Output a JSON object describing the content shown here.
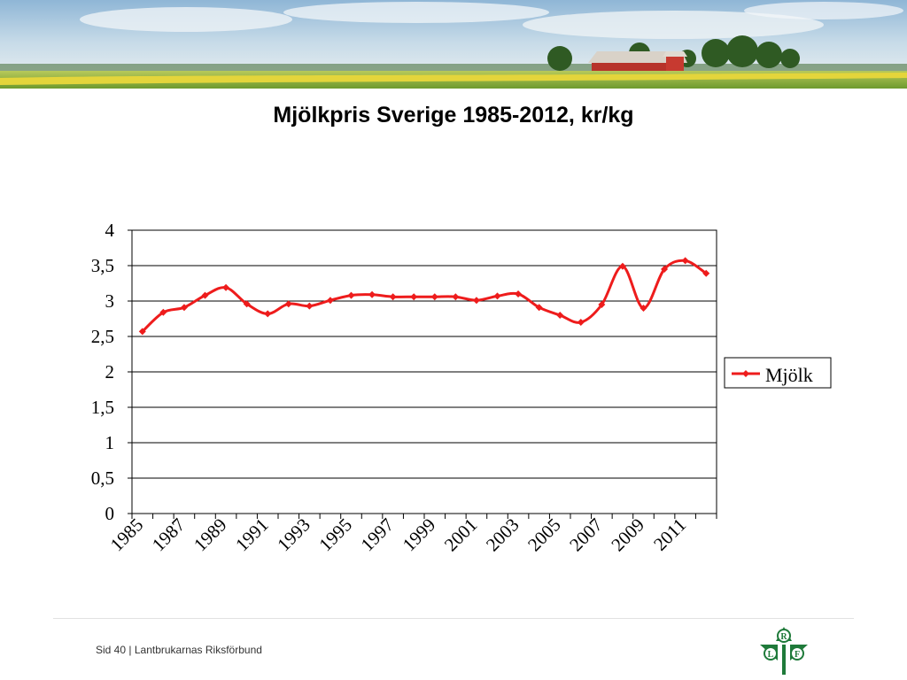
{
  "slide": {
    "title": "Mjölkpris Sverige 1985-2012, kr/kg",
    "footer": {
      "page_label": "Sid 40",
      "separator": "|",
      "organization": "Lantbrukarnas Riksförbund"
    },
    "logo": {
      "letters": [
        "R",
        "L",
        "F"
      ],
      "color": "#1f7a3a"
    }
  },
  "chart_data": {
    "type": "line",
    "title": "Mjölkpris Sverige 1985-2012, kr/kg",
    "xlabel": "",
    "ylabel": "",
    "x_tick_labels": [
      "1985",
      "1987",
      "1989",
      "1991",
      "1993",
      "1995",
      "1997",
      "1999",
      "2001",
      "2003",
      "2005",
      "2007",
      "2009",
      "2011"
    ],
    "y_tick_labels": [
      "0",
      "0,5",
      "1",
      "1,5",
      "2",
      "2,5",
      "3",
      "3,5",
      "4"
    ],
    "ylim": [
      0,
      4
    ],
    "grid": true,
    "legend_position": "right",
    "x": [
      1985,
      1986,
      1987,
      1988,
      1989,
      1990,
      1991,
      1992,
      1993,
      1994,
      1995,
      1996,
      1997,
      1998,
      1999,
      2000,
      2001,
      2002,
      2003,
      2004,
      2005,
      2006,
      2007,
      2008,
      2009,
      2010,
      2011,
      2012
    ],
    "series": [
      {
        "name": "Mjölk",
        "color": "#ee1c1c",
        "values": [
          2.57,
          2.84,
          2.91,
          3.08,
          3.19,
          2.96,
          2.82,
          2.96,
          2.93,
          3.01,
          3.08,
          3.09,
          3.06,
          3.06,
          3.06,
          3.06,
          3.01,
          3.07,
          3.1,
          2.91,
          2.8,
          2.7,
          2.95,
          3.49,
          2.9,
          3.45,
          3.57,
          3.39
        ]
      }
    ]
  }
}
